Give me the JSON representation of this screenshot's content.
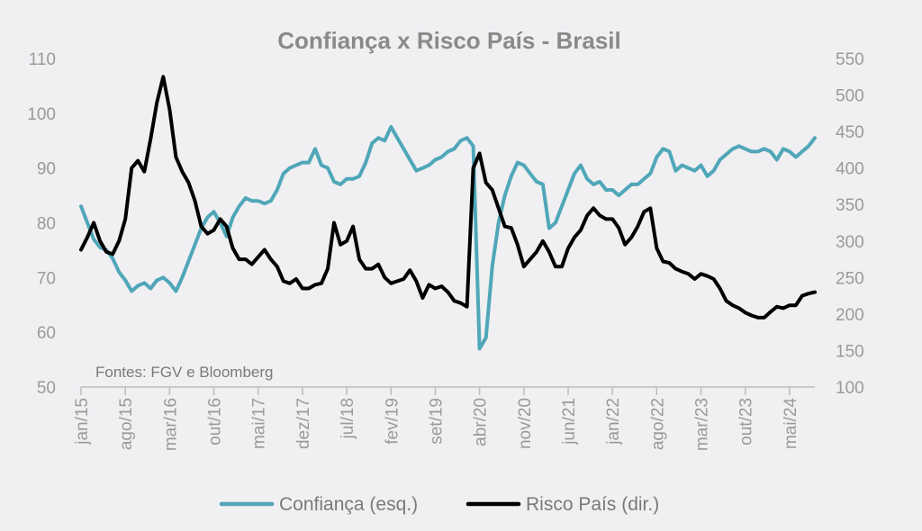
{
  "chart_data": {
    "type": "line",
    "title": "Confiança x Risco País - Brasil",
    "source_note": "Fontes: FGV e Bloomberg",
    "colors": {
      "background": "#f0eff2",
      "confianca": "#4fa7b8",
      "risco": "#000000",
      "text": "#9a9a9a",
      "axis": "#bdbdbd"
    },
    "y_left": {
      "ylim": [
        50,
        110
      ],
      "ticks": [
        "50",
        "60",
        "70",
        "80",
        "90",
        "100",
        "110"
      ]
    },
    "y_right": {
      "ylim": [
        100,
        550
      ],
      "ticks": [
        "100",
        "150",
        "200",
        "250",
        "300",
        "350",
        "400",
        "450",
        "500",
        "550"
      ]
    },
    "x": {
      "start": "2015-01",
      "end": "2024-09",
      "tick_labels": [
        "jan/15",
        "ago/15",
        "mar/16",
        "out/16",
        "mai/17",
        "dez/17",
        "jul/18",
        "fev/19",
        "set/19",
        "abr/20",
        "nov/20",
        "jun/21",
        "jan/22",
        "ago/22",
        "mar/23",
        "out/23",
        "mai/24"
      ]
    },
    "legend": {
      "position": "bottom",
      "entries": [
        "Confiança (esq.)",
        "Risco País (dir.)"
      ]
    },
    "grid": false,
    "series": [
      {
        "name": "Confiança (esq.)",
        "axis": "left",
        "points": [
          [
            "2015-01",
            83
          ],
          [
            "2015-02",
            80
          ],
          [
            "2015-03",
            77
          ],
          [
            "2015-04",
            75.5
          ],
          [
            "2015-05",
            75
          ],
          [
            "2015-06",
            73.5
          ],
          [
            "2015-07",
            71
          ],
          [
            "2015-08",
            69.5
          ],
          [
            "2015-09",
            67.5
          ],
          [
            "2015-10",
            68.5
          ],
          [
            "2015-11",
            69
          ],
          [
            "2015-12",
            68
          ],
          [
            "2016-01",
            69.5
          ],
          [
            "2016-02",
            70
          ],
          [
            "2016-03",
            69
          ],
          [
            "2016-04",
            67.5
          ],
          [
            "2016-05",
            70
          ],
          [
            "2016-06",
            73
          ],
          [
            "2016-07",
            76
          ],
          [
            "2016-08",
            79
          ],
          [
            "2016-09",
            81
          ],
          [
            "2016-10",
            82
          ],
          [
            "2016-11",
            80
          ],
          [
            "2016-12",
            77.5
          ],
          [
            "2017-01",
            81
          ],
          [
            "2017-02",
            83
          ],
          [
            "2017-03",
            84.5
          ],
          [
            "2017-04",
            84
          ],
          [
            "2017-05",
            84
          ],
          [
            "2017-06",
            83.5
          ],
          [
            "2017-07",
            84
          ],
          [
            "2017-08",
            86
          ],
          [
            "2017-09",
            89
          ],
          [
            "2017-10",
            90
          ],
          [
            "2017-11",
            90.5
          ],
          [
            "2017-12",
            91
          ],
          [
            "2018-01",
            91
          ],
          [
            "2018-02",
            93.5
          ],
          [
            "2018-03",
            90.5
          ],
          [
            "2018-04",
            90
          ],
          [
            "2018-05",
            87.5
          ],
          [
            "2018-06",
            87
          ],
          [
            "2018-07",
            88
          ],
          [
            "2018-08",
            88
          ],
          [
            "2018-09",
            88.5
          ],
          [
            "2018-10",
            91
          ],
          [
            "2018-11",
            94.5
          ],
          [
            "2018-12",
            95.5
          ],
          [
            "2019-01",
            95
          ],
          [
            "2019-02",
            97.5
          ],
          [
            "2019-03",
            95.5
          ],
          [
            "2019-04",
            93.5
          ],
          [
            "2019-05",
            91.5
          ],
          [
            "2019-06",
            89.5
          ],
          [
            "2019-07",
            90
          ],
          [
            "2019-08",
            90.5
          ],
          [
            "2019-09",
            91.5
          ],
          [
            "2019-10",
            92
          ],
          [
            "2019-11",
            93
          ],
          [
            "2019-12",
            93.5
          ],
          [
            "2020-01",
            95
          ],
          [
            "2020-02",
            95.5
          ],
          [
            "2020-03",
            94
          ],
          [
            "2020-04",
            57
          ],
          [
            "2020-05",
            59
          ],
          [
            "2020-06",
            72
          ],
          [
            "2020-07",
            80
          ],
          [
            "2020-08",
            85
          ],
          [
            "2020-09",
            88.5
          ],
          [
            "2020-10",
            91
          ],
          [
            "2020-11",
            90.5
          ],
          [
            "2020-12",
            89
          ],
          [
            "2021-01",
            87.5
          ],
          [
            "2021-02",
            87
          ],
          [
            "2021-03",
            79
          ],
          [
            "2021-04",
            80
          ],
          [
            "2021-05",
            83
          ],
          [
            "2021-06",
            86
          ],
          [
            "2021-07",
            89
          ],
          [
            "2021-08",
            90.5
          ],
          [
            "2021-09",
            88
          ],
          [
            "2021-10",
            87
          ],
          [
            "2021-11",
            87.5
          ],
          [
            "2021-12",
            86
          ],
          [
            "2022-01",
            86
          ],
          [
            "2022-02",
            85
          ],
          [
            "2022-03",
            86
          ],
          [
            "2022-04",
            87
          ],
          [
            "2022-05",
            87
          ],
          [
            "2022-06",
            88
          ],
          [
            "2022-07",
            89
          ],
          [
            "2022-08",
            92
          ],
          [
            "2022-09",
            93.5
          ],
          [
            "2022-10",
            93
          ],
          [
            "2022-11",
            89.5
          ],
          [
            "2022-12",
            90.5
          ],
          [
            "2023-01",
            90
          ],
          [
            "2023-02",
            89.5
          ],
          [
            "2023-03",
            90.5
          ],
          [
            "2023-04",
            88.5
          ],
          [
            "2023-05",
            89.5
          ],
          [
            "2023-06",
            91.5
          ],
          [
            "2023-07",
            92.5
          ],
          [
            "2023-08",
            93.5
          ],
          [
            "2023-09",
            94
          ],
          [
            "2023-10",
            93.5
          ],
          [
            "2023-11",
            93
          ],
          [
            "2023-12",
            93
          ],
          [
            "2024-01",
            93.5
          ],
          [
            "2024-02",
            93
          ],
          [
            "2024-03",
            91.5
          ],
          [
            "2024-04",
            93.5
          ],
          [
            "2024-05",
            93
          ],
          [
            "2024-06",
            92
          ],
          [
            "2024-07",
            93
          ],
          [
            "2024-08",
            94
          ],
          [
            "2024-09",
            95.5
          ]
        ]
      },
      {
        "name": "Risco País (dir.)",
        "axis": "right",
        "points": [
          [
            "2015-01",
            288
          ],
          [
            "2015-02",
            305
          ],
          [
            "2015-03",
            325
          ],
          [
            "2015-04",
            300
          ],
          [
            "2015-05",
            285
          ],
          [
            "2015-06",
            282
          ],
          [
            "2015-07",
            300
          ],
          [
            "2015-08",
            330
          ],
          [
            "2015-09",
            400
          ],
          [
            "2015-10",
            410
          ],
          [
            "2015-11",
            395
          ],
          [
            "2015-12",
            440
          ],
          [
            "2016-01",
            490
          ],
          [
            "2016-02",
            525
          ],
          [
            "2016-03",
            480
          ],
          [
            "2016-04",
            415
          ],
          [
            "2016-05",
            395
          ],
          [
            "2016-06",
            380
          ],
          [
            "2016-07",
            355
          ],
          [
            "2016-08",
            320
          ],
          [
            "2016-09",
            310
          ],
          [
            "2016-10",
            315
          ],
          [
            "2016-11",
            330
          ],
          [
            "2016-12",
            320
          ],
          [
            "2017-01",
            290
          ],
          [
            "2017-02",
            275
          ],
          [
            "2017-03",
            275
          ],
          [
            "2017-04",
            268
          ],
          [
            "2017-05",
            278
          ],
          [
            "2017-06",
            288
          ],
          [
            "2017-07",
            275
          ],
          [
            "2017-08",
            265
          ],
          [
            "2017-09",
            245
          ],
          [
            "2017-10",
            242
          ],
          [
            "2017-11",
            248
          ],
          [
            "2017-12",
            235
          ],
          [
            "2018-01",
            235
          ],
          [
            "2018-02",
            240
          ],
          [
            "2018-03",
            242
          ],
          [
            "2018-04",
            262
          ],
          [
            "2018-05",
            325
          ],
          [
            "2018-06",
            295
          ],
          [
            "2018-07",
            300
          ],
          [
            "2018-08",
            320
          ],
          [
            "2018-09",
            275
          ],
          [
            "2018-10",
            262
          ],
          [
            "2018-11",
            262
          ],
          [
            "2018-12",
            268
          ],
          [
            "2019-01",
            250
          ],
          [
            "2019-02",
            242
          ],
          [
            "2019-03",
            245
          ],
          [
            "2019-04",
            248
          ],
          [
            "2019-05",
            260
          ],
          [
            "2019-06",
            245
          ],
          [
            "2019-07",
            222
          ],
          [
            "2019-08",
            240
          ],
          [
            "2019-09",
            235
          ],
          [
            "2019-10",
            238
          ],
          [
            "2019-11",
            230
          ],
          [
            "2019-12",
            218
          ],
          [
            "2020-01",
            215
          ],
          [
            "2020-02",
            210
          ],
          [
            "2020-03",
            400
          ],
          [
            "2020-04",
            420
          ],
          [
            "2020-05",
            380
          ],
          [
            "2020-06",
            370
          ],
          [
            "2020-07",
            345
          ],
          [
            "2020-08",
            320
          ],
          [
            "2020-09",
            318
          ],
          [
            "2020-10",
            295
          ],
          [
            "2020-11",
            265
          ],
          [
            "2020-12",
            275
          ],
          [
            "2021-01",
            285
          ],
          [
            "2021-02",
            300
          ],
          [
            "2021-03",
            285
          ],
          [
            "2021-04",
            265
          ],
          [
            "2021-05",
            265
          ],
          [
            "2021-06",
            290
          ],
          [
            "2021-07",
            305
          ],
          [
            "2021-08",
            315
          ],
          [
            "2021-09",
            335
          ],
          [
            "2021-10",
            345
          ],
          [
            "2021-11",
            335
          ],
          [
            "2021-12",
            330
          ],
          [
            "2022-01",
            330
          ],
          [
            "2022-02",
            318
          ],
          [
            "2022-03",
            295
          ],
          [
            "2022-04",
            305
          ],
          [
            "2022-05",
            320
          ],
          [
            "2022-06",
            340
          ],
          [
            "2022-07",
            345
          ],
          [
            "2022-08",
            290
          ],
          [
            "2022-09",
            272
          ],
          [
            "2022-10",
            270
          ],
          [
            "2022-11",
            262
          ],
          [
            "2022-12",
            258
          ],
          [
            "2023-01",
            255
          ],
          [
            "2023-02",
            248
          ],
          [
            "2023-03",
            255
          ],
          [
            "2023-04",
            252
          ],
          [
            "2023-05",
            248
          ],
          [
            "2023-06",
            235
          ],
          [
            "2023-07",
            218
          ],
          [
            "2023-08",
            212
          ],
          [
            "2023-09",
            208
          ],
          [
            "2023-10",
            202
          ],
          [
            "2023-11",
            198
          ],
          [
            "2023-12",
            195
          ],
          [
            "2024-01",
            195
          ],
          [
            "2024-02",
            203
          ],
          [
            "2024-03",
            210
          ],
          [
            "2024-04",
            208
          ],
          [
            "2024-05",
            212
          ],
          [
            "2024-06",
            212
          ],
          [
            "2024-07",
            225
          ],
          [
            "2024-08",
            228
          ],
          [
            "2024-09",
            230
          ]
        ]
      }
    ]
  }
}
